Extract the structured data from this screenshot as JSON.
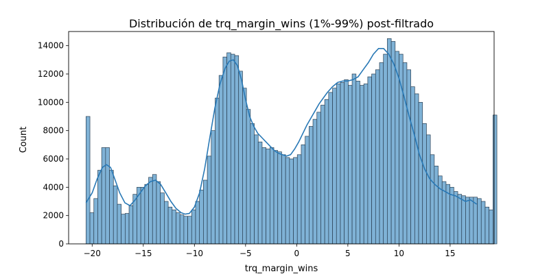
{
  "chart_data": {
    "type": "histogram",
    "title": "Distribución de trq_margin_wins (1%-99%) post-filtrado",
    "xlabel": "trq_margin_wins",
    "ylabel": "Count",
    "xlim": [
      -22.3,
      19.3
    ],
    "ylim": [
      0,
      15000
    ],
    "xticks": [
      -20,
      -15,
      -10,
      -5,
      0,
      5,
      10,
      15
    ],
    "yticks": [
      0,
      2000,
      4000,
      6000,
      8000,
      10000,
      12000,
      14000
    ],
    "bins": {
      "start": -20.6,
      "width": 0.3826,
      "counts": [
        9000,
        2200,
        3200,
        5200,
        6800,
        6800,
        5200,
        4100,
        2800,
        2100,
        2150,
        2700,
        3500,
        4000,
        4000,
        4200,
        4700,
        4900,
        4400,
        3600,
        3000,
        2600,
        2400,
        2200,
        2050,
        1950,
        1950,
        2400,
        3000,
        3800,
        4500,
        6200,
        8000,
        10300,
        11900,
        13200,
        13500,
        13400,
        13300,
        12200,
        11000,
        9500,
        8500,
        7700,
        7200,
        6800,
        6700,
        6800,
        6600,
        6500,
        6300,
        6100,
        6000,
        6100,
        6300,
        7000,
        7600,
        8300,
        8800,
        9300,
        9800,
        10200,
        10700,
        11000,
        11300,
        11400,
        11600,
        11200,
        12000,
        11500,
        11200,
        11300,
        11800,
        12000,
        12300,
        12800,
        13400,
        14500,
        14300,
        13600,
        13400,
        12800,
        12300,
        11100,
        10600,
        10000,
        8500,
        7700,
        6300,
        5500,
        4800,
        4400,
        4200,
        4000,
        3700,
        3500,
        3400,
        3300,
        3300,
        3300,
        3200,
        3000,
        2600,
        2400,
        9100
      ],
      "fill_color": "#7fb2d6",
      "edge_color": "#2a3f52"
    },
    "kde": {
      "color": "#2878b5",
      "x": [
        -20.6,
        -20.0,
        -19.5,
        -19.0,
        -18.6,
        -18.2,
        -17.8,
        -17.3,
        -16.8,
        -16.3,
        -15.8,
        -15.3,
        -14.8,
        -14.3,
        -13.8,
        -13.3,
        -12.8,
        -12.3,
        -11.8,
        -11.3,
        -10.9,
        -10.5,
        -10.0,
        -9.5,
        -9.0,
        -8.5,
        -8.0,
        -7.5,
        -7.0,
        -6.6,
        -6.2,
        -5.8,
        -5.4,
        -5.0,
        -4.6,
        -4.2,
        -3.8,
        -3.4,
        -3.0,
        -2.6,
        -2.2,
        -1.8,
        -1.4,
        -1.0,
        -0.6,
        -0.2,
        0.2,
        0.6,
        1.0,
        1.4,
        1.8,
        2.2,
        2.6,
        3.0,
        3.5,
        4.0,
        4.5,
        5.0,
        5.5,
        6.0,
        6.5,
        7.0,
        7.5,
        8.0,
        8.5,
        9.0,
        9.5,
        10.0,
        10.5,
        11.0,
        11.5,
        12.0,
        12.5,
        13.0,
        13.5,
        14.0,
        14.5,
        15.0,
        15.5,
        16.0,
        16.5,
        17.0,
        17.6
      ],
      "y": [
        2900,
        3600,
        4600,
        5400,
        5600,
        5400,
        4600,
        3600,
        2900,
        2700,
        3100,
        3600,
        4100,
        4400,
        4500,
        4200,
        3600,
        3000,
        2500,
        2200,
        2100,
        2150,
        2600,
        3600,
        5300,
        7500,
        9600,
        11300,
        12400,
        12900,
        13000,
        12600,
        11600,
        10200,
        9000,
        8300,
        7800,
        7500,
        7200,
        6900,
        6600,
        6400,
        6300,
        6200,
        6300,
        6700,
        7200,
        7800,
        8400,
        8900,
        9400,
        9900,
        10300,
        10700,
        11100,
        11400,
        11500,
        11500,
        11600,
        11800,
        12300,
        12800,
        13400,
        13800,
        13800,
        13400,
        12700,
        11700,
        10400,
        9000,
        7700,
        6300,
        5300,
        4600,
        4200,
        3900,
        3700,
        3500,
        3400,
        3200,
        3000,
        3100,
        2800
      ]
    }
  }
}
